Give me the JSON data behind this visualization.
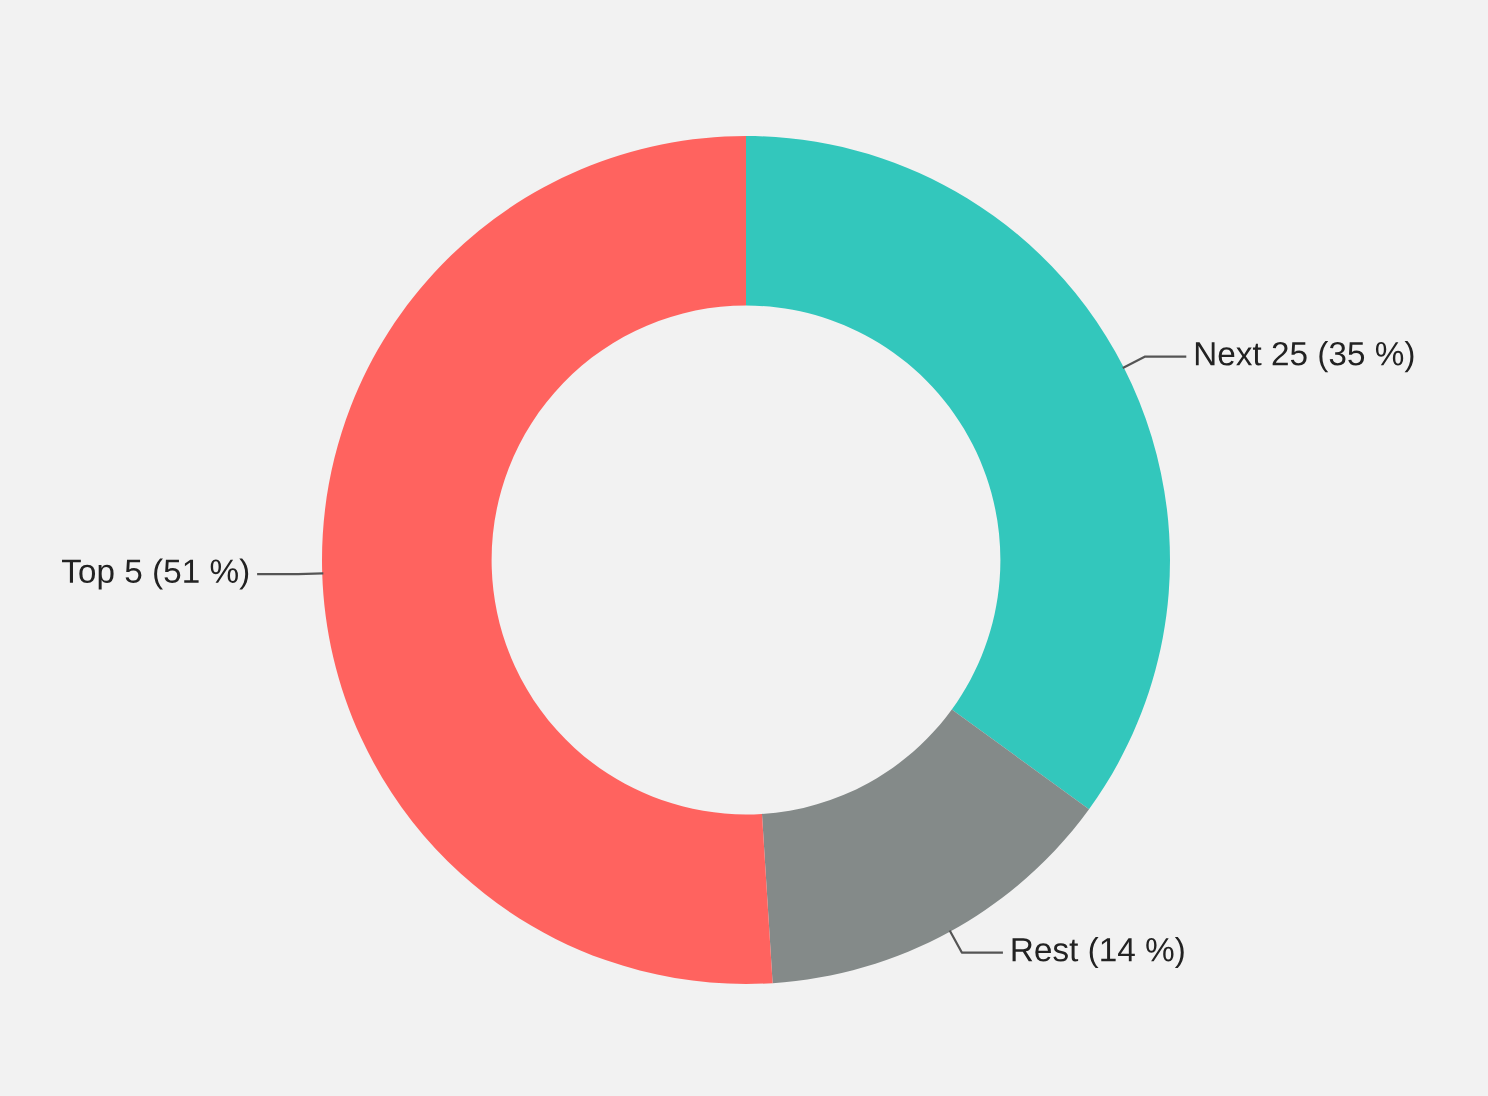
{
  "chart_data": {
    "type": "donut",
    "categories": [
      "Next 25 (35 %)",
      "Rest (14 %)",
      "Top 5 (51 %)"
    ],
    "values": [
      35,
      14,
      51
    ],
    "colors": [
      "#33c7bc",
      "#848a89",
      "#ff635f"
    ],
    "legend": false
  }
}
